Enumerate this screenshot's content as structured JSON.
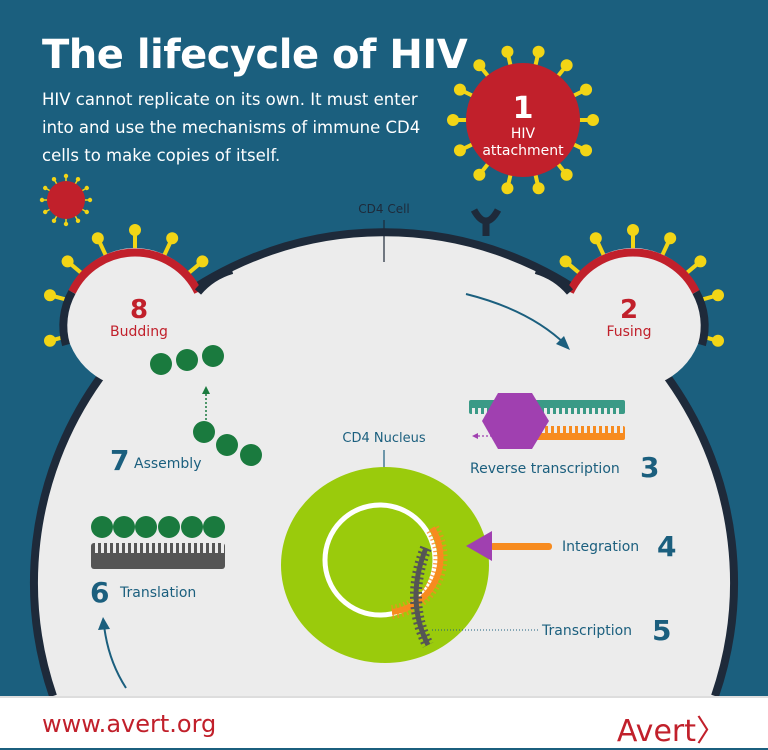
{
  "header": {
    "title": "The lifecycle of HIV",
    "intro": "HIV cannot replicate on its own. It must enter into and use the mechanisms of immune CD4 cells to make copies of itself."
  },
  "labels": {
    "cell": "CD4 Cell",
    "nucleus": "CD4 Nucleus"
  },
  "steps": [
    {
      "number": "1",
      "label": "HIV",
      "label2": "attachment"
    },
    {
      "number": "2",
      "label": "Fusing"
    },
    {
      "number": "3",
      "label": "Reverse transcription"
    },
    {
      "number": "4",
      "label": "Integration"
    },
    {
      "number": "5",
      "label": "Transcription"
    },
    {
      "number": "6",
      "label": "Translation"
    },
    {
      "number": "7",
      "label": "Assembly"
    },
    {
      "number": "8",
      "label": "Budding"
    }
  ],
  "footer": {
    "url": "www.avert.org",
    "logo": "Avert"
  },
  "colors": {
    "background": "#1b5f7e",
    "cell": "#ececec",
    "membrane": "#1e2a3a",
    "virus": "#c1202b",
    "spike": "#f2d516",
    "protein": "#1a7a3e",
    "nucleus": "#9acb0c",
    "enzyme": "#a040b0",
    "dna": "#f78b1f",
    "rna": "#3a9a86",
    "text": "#1b5f7e"
  }
}
